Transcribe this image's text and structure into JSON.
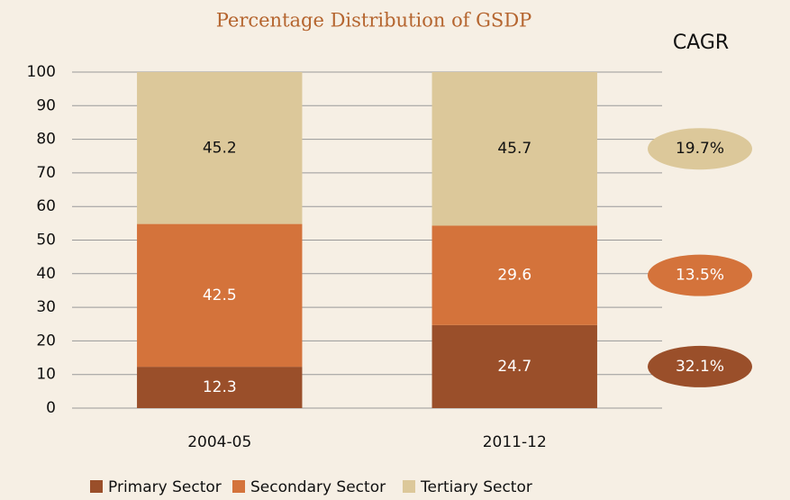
{
  "chart_data": {
    "type": "stacked_bar",
    "title": "Percentage Distribution of GSDP",
    "cagr_title": "CAGR",
    "categories": [
      "2004-05",
      "2011-12"
    ],
    "series": [
      {
        "name": "Primary Sector",
        "color": "#9a4f2a",
        "values": [
          12.3,
          24.7
        ],
        "cagr_label": "32.1%"
      },
      {
        "name": "Secondary Sector",
        "color": "#d4733b",
        "values": [
          42.5,
          29.6
        ],
        "cagr_label": "13.5%"
      },
      {
        "name": "Tertiary Sector",
        "color": "#dcc89a",
        "values": [
          45.2,
          45.7
        ],
        "cagr_label": "19.7%"
      }
    ],
    "ylim": [
      0,
      100
    ],
    "yticks": [
      0,
      10,
      20,
      30,
      40,
      50,
      60,
      70,
      80,
      90,
      100
    ],
    "grid": true
  }
}
